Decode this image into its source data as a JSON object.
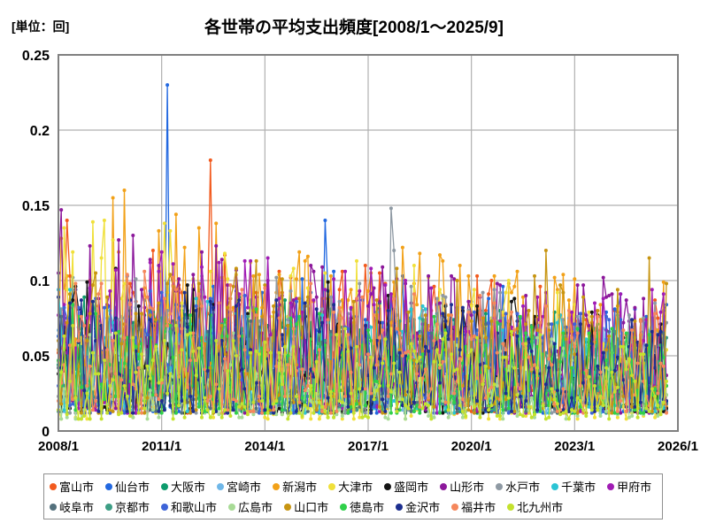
{
  "header": {
    "unit_label": "[単位：回]",
    "title": "各世帯の平均支出頻度[2008/1～2025/9]"
  },
  "chart_data": {
    "type": "line",
    "title": "各世帯の平均支出頻度[2008/1～2025/9]",
    "unit": "回",
    "xlabel": "",
    "ylabel": "[単位：回]",
    "ylim": [
      0,
      0.25
    ],
    "y_tick_labels": [
      "0",
      "0.05",
      "0.1",
      "0.15",
      "0.2",
      "0.25"
    ],
    "x_tick_labels": [
      "2008/1",
      "2011/1",
      "2014/1",
      "2017/1",
      "2020/1",
      "2023/1",
      "2026/1"
    ],
    "x_start": "2008/1",
    "x_end": "2025/9",
    "x_axis_end": "2026/1",
    "sampling": "monthly",
    "n_points": 213,
    "grid": true,
    "grid_color": "#b0b0b0",
    "frame_color": "#808080",
    "marker": "circle",
    "legend_position": "bottom",
    "value_model": {
      "skew": 1.6,
      "note": "dense unlabeled monthly noise; each series oscillates within range, upper envelope fading over time; read-off visible peaks listed per series"
    },
    "series": [
      {
        "id": "toyama",
        "name": "富山市",
        "color": "#F25A1E",
        "seed": 11,
        "range": [
          0.012,
          0.13
        ],
        "fade": 0.3,
        "peaks": [
          {
            "month": "2008/4",
            "value": 0.14
          },
          {
            "month": "2012/6",
            "value": 0.18
          }
        ]
      },
      {
        "id": "sendai",
        "name": "仙台市",
        "color": "#2268E0",
        "seed": 22,
        "range": [
          0.012,
          0.12
        ],
        "fade": 0.25,
        "peaks": [
          {
            "month": "2011/3",
            "value": 0.23
          },
          {
            "month": "2015/10",
            "value": 0.14
          }
        ]
      },
      {
        "id": "osaka",
        "name": "大阪市",
        "color": "#0D9B6C",
        "seed": 33,
        "range": [
          0.012,
          0.095
        ],
        "fade": 0.2,
        "peaks": []
      },
      {
        "id": "miyazaki",
        "name": "宮崎市",
        "color": "#6FB7E8",
        "seed": 44,
        "range": [
          0.012,
          0.085
        ],
        "fade": 0.2,
        "peaks": []
      },
      {
        "id": "niigata",
        "name": "新潟市",
        "color": "#F2A118",
        "seed": 55,
        "range": [
          0.015,
          0.155
        ],
        "fade": 0.35,
        "peaks": [
          {
            "month": "2009/8",
            "value": 0.155
          },
          {
            "month": "2009/12",
            "value": 0.16
          }
        ]
      },
      {
        "id": "otsu",
        "name": "大津市",
        "color": "#F0E03A",
        "seed": 66,
        "range": [
          0.008,
          0.15
        ],
        "fade": 0.45,
        "peaks": [
          {
            "month": "2008/3",
            "value": 0.135
          }
        ]
      },
      {
        "id": "morioka",
        "name": "盛岡市",
        "color": "#141414",
        "seed": 77,
        "range": [
          0.012,
          0.115
        ],
        "fade": 0.3,
        "peaks": []
      },
      {
        "id": "yamagata",
        "name": "山形市",
        "color": "#8C189B",
        "seed": 88,
        "range": [
          0.012,
          0.135
        ],
        "fade": 0.3,
        "peaks": [
          {
            "month": "2008/2",
            "value": 0.147
          },
          {
            "month": "2023/11",
            "value": 0.102
          }
        ]
      },
      {
        "id": "mito",
        "name": "水戸市",
        "color": "#8E99A3",
        "seed": 99,
        "range": [
          0.012,
          0.11
        ],
        "fade": 0.2,
        "peaks": [
          {
            "month": "2017/9",
            "value": 0.148
          },
          {
            "month": "2017/10",
            "value": 0.12
          }
        ]
      },
      {
        "id": "chiba",
        "name": "千葉市",
        "color": "#2BC4D4",
        "seed": 111,
        "range": [
          0.012,
          0.095
        ],
        "fade": 0.2,
        "peaks": []
      },
      {
        "id": "kofu",
        "name": "甲府市",
        "color": "#A01CB4",
        "seed": 122,
        "range": [
          0.012,
          0.125
        ],
        "fade": 0.25,
        "peaks": [
          {
            "month": "2014/2",
            "value": 0.115
          }
        ]
      },
      {
        "id": "gifu",
        "name": "岐阜市",
        "color": "#53707C",
        "seed": 133,
        "range": [
          0.012,
          0.085
        ],
        "fade": 0.2,
        "peaks": []
      },
      {
        "id": "kyoto",
        "name": "京都市",
        "color": "#3D9E85",
        "seed": 144,
        "range": [
          0.012,
          0.085
        ],
        "fade": 0.2,
        "peaks": []
      },
      {
        "id": "wakayama",
        "name": "和歌山市",
        "color": "#3D64D8",
        "seed": 155,
        "range": [
          0.012,
          0.1
        ],
        "fade": 0.25,
        "peaks": []
      },
      {
        "id": "hiroshima",
        "name": "広島市",
        "color": "#A8DB96",
        "seed": 166,
        "range": [
          0.008,
          0.07
        ],
        "fade": 0.15,
        "peaks": []
      },
      {
        "id": "yamaguchi",
        "name": "山口市",
        "color": "#C79512",
        "seed": 177,
        "range": [
          0.012,
          0.12
        ],
        "fade": 0.15,
        "peaks": [
          {
            "month": "2022/3",
            "value": 0.12
          },
          {
            "month": "2025/3",
            "value": 0.115
          }
        ]
      },
      {
        "id": "tokushima",
        "name": "徳島市",
        "color": "#2FD04A",
        "seed": 188,
        "range": [
          0.012,
          0.09
        ],
        "fade": 0.2,
        "peaks": []
      },
      {
        "id": "kanazawa",
        "name": "金沢市",
        "color": "#1C2E8F",
        "seed": 199,
        "range": [
          0.012,
          0.1
        ],
        "fade": 0.25,
        "peaks": []
      },
      {
        "id": "fukui",
        "name": "福井市",
        "color": "#F5875C",
        "seed": 211,
        "range": [
          0.012,
          0.115
        ],
        "fade": 0.3,
        "peaks": []
      },
      {
        "id": "kitakyushu",
        "name": "北九州市",
        "color": "#C4E22E",
        "seed": 222,
        "range": [
          0.008,
          0.075
        ],
        "fade": 0.15,
        "peaks": []
      }
    ]
  }
}
